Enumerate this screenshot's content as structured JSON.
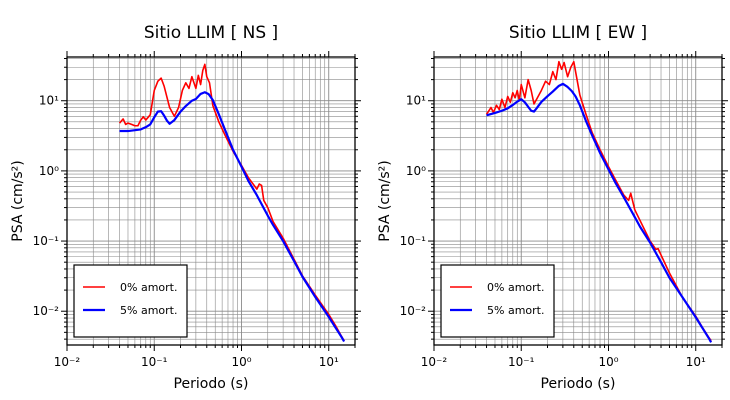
{
  "chart_data": [
    {
      "type": "line",
      "title": "Sitio LLIM [ NS ]",
      "xlabel": "Periodo (s)",
      "ylabel": "PSA (cm/s²)",
      "xscale": "log",
      "yscale": "log",
      "xlim": [
        0.01,
        20
      ],
      "ylim": [
        0.0033,
        42
      ],
      "x_ticks": [
        "10⁻²",
        "10⁻¹",
        "10⁰",
        "10¹"
      ],
      "y_ticks": [
        "10⁻²",
        "10⁻¹",
        "10⁰",
        "10¹"
      ],
      "grid": true,
      "legend": "bottom-left",
      "series": [
        {
          "name": "0% amort.",
          "color": "#ff0000",
          "x": [
            0.04,
            0.044,
            0.047,
            0.05,
            0.055,
            0.06,
            0.065,
            0.07,
            0.075,
            0.08,
            0.09,
            0.1,
            0.11,
            0.12,
            0.13,
            0.15,
            0.17,
            0.19,
            0.21,
            0.23,
            0.25,
            0.27,
            0.3,
            0.32,
            0.34,
            0.36,
            0.38,
            0.4,
            0.43,
            0.47,
            0.55,
            0.65,
            0.8,
            1.0,
            1.2,
            1.5,
            1.6,
            1.7,
            1.8,
            2.0,
            2.3,
            3.0,
            4.0,
            5.0,
            7.0,
            10,
            12,
            14,
            15
          ],
          "values": [
            4.8,
            5.5,
            4.6,
            4.8,
            4.6,
            4.4,
            4.4,
            5.3,
            5.9,
            5.3,
            6.3,
            14,
            19,
            21,
            16,
            8,
            6,
            8,
            14,
            18,
            15,
            22,
            15,
            23,
            17,
            27,
            33,
            22,
            18,
            8.5,
            5,
            3.2,
            1.9,
            1.2,
            0.8,
            0.55,
            0.65,
            0.62,
            0.38,
            0.3,
            0.19,
            0.11,
            0.055,
            0.032,
            0.017,
            0.009,
            0.0062,
            0.0044,
            0.0038
          ]
        },
        {
          "name": "5% amort.",
          "color": "#0000ff",
          "x": [
            0.04,
            0.05,
            0.06,
            0.07,
            0.08,
            0.09,
            0.1,
            0.11,
            0.12,
            0.13,
            0.14,
            0.15,
            0.17,
            0.2,
            0.23,
            0.27,
            0.3,
            0.34,
            0.38,
            0.42,
            0.47,
            0.55,
            0.65,
            0.8,
            1.0,
            1.2,
            1.5,
            2.0,
            2.3,
            3.0,
            4.0,
            5.0,
            7.0,
            10,
            12,
            14,
            15
          ],
          "values": [
            3.7,
            3.7,
            3.8,
            3.9,
            4.2,
            4.6,
            5.8,
            7.0,
            7.1,
            6.1,
            5.2,
            4.7,
            5.3,
            7.0,
            8.4,
            10,
            10.6,
            12.5,
            13.2,
            12.4,
            10.2,
            6.4,
            3.8,
            2.0,
            1.15,
            0.72,
            0.45,
            0.23,
            0.17,
            0.1,
            0.052,
            0.031,
            0.016,
            0.0083,
            0.0058,
            0.0043,
            0.0037
          ]
        }
      ]
    },
    {
      "type": "line",
      "title": "Sitio LLIM [ EW ]",
      "xlabel": "Periodo (s)",
      "ylabel": "PSA (cm/s²)",
      "xscale": "log",
      "yscale": "log",
      "xlim": [
        0.01,
        20
      ],
      "ylim": [
        0.0033,
        42
      ],
      "x_ticks": [
        "10⁻²",
        "10⁻¹",
        "10⁰",
        "10¹"
      ],
      "y_ticks": [
        "10⁻²",
        "10⁻¹",
        "10⁰",
        "10¹"
      ],
      "grid": true,
      "legend": "bottom-left",
      "series": [
        {
          "name": "0% amort.",
          "color": "#ff0000",
          "x": [
            0.04,
            0.045,
            0.048,
            0.052,
            0.056,
            0.06,
            0.065,
            0.07,
            0.075,
            0.08,
            0.085,
            0.09,
            0.095,
            0.1,
            0.11,
            0.12,
            0.13,
            0.14,
            0.15,
            0.17,
            0.19,
            0.21,
            0.23,
            0.25,
            0.27,
            0.29,
            0.31,
            0.34,
            0.37,
            0.4,
            0.43,
            0.47,
            0.55,
            0.65,
            0.8,
            1.0,
            1.2,
            1.5,
            1.7,
            1.8,
            2.0,
            3.0,
            3.5,
            3.7,
            5.0,
            7.0,
            10,
            12,
            14,
            15
          ],
          "values": [
            6.4,
            8.0,
            6.8,
            8.6,
            7.5,
            10.5,
            8.0,
            11.5,
            9.5,
            13,
            11,
            14,
            10,
            17,
            11,
            20,
            14,
            9,
            10.5,
            14,
            19,
            17,
            26,
            20,
            36,
            28,
            35,
            22,
            30,
            36,
            22,
            12,
            6.5,
            3.5,
            2.0,
            1.15,
            0.75,
            0.45,
            0.38,
            0.48,
            0.28,
            0.1,
            0.076,
            0.078,
            0.035,
            0.016,
            0.0085,
            0.0058,
            0.0043,
            0.0038
          ]
        },
        {
          "name": "5% amort.",
          "color": "#0000ff",
          "x": [
            0.04,
            0.05,
            0.06,
            0.07,
            0.08,
            0.09,
            0.1,
            0.11,
            0.12,
            0.13,
            0.14,
            0.15,
            0.17,
            0.2,
            0.23,
            0.27,
            0.3,
            0.34,
            0.38,
            0.42,
            0.47,
            0.55,
            0.65,
            0.8,
            1.0,
            1.2,
            1.5,
            2.0,
            2.3,
            3.0,
            4.0,
            5.0,
            7.0,
            10,
            12,
            14,
            15
          ],
          "values": [
            6.2,
            6.7,
            7.2,
            7.8,
            8.7,
            9.7,
            10.5,
            9.5,
            8.2,
            7.2,
            7.0,
            7.8,
            9.6,
            11.6,
            13.5,
            16.3,
            17.4,
            15.7,
            13.7,
            11.5,
            8.6,
            5.2,
            3.2,
            1.8,
            1.05,
            0.68,
            0.42,
            0.22,
            0.16,
            0.095,
            0.05,
            0.03,
            0.016,
            0.0082,
            0.0057,
            0.0042,
            0.0036
          ]
        }
      ]
    }
  ]
}
